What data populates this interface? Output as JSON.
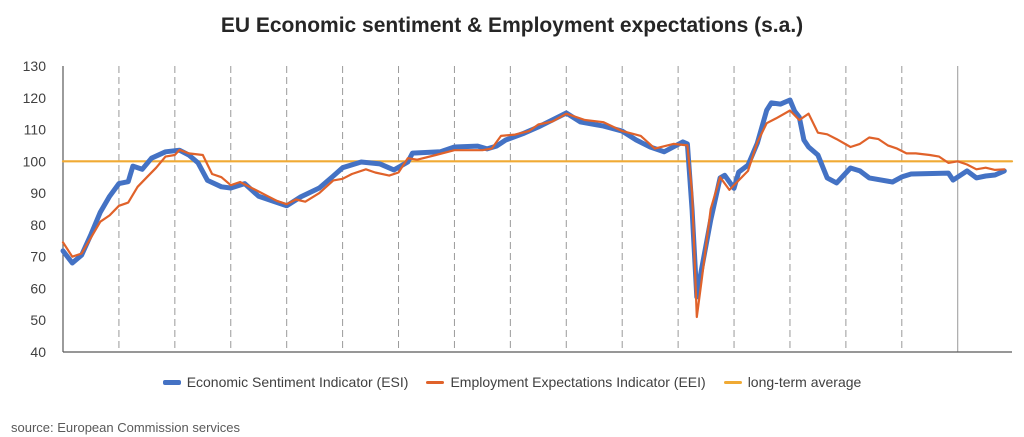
{
  "chart_data": {
    "type": "line",
    "title": "EU Economic sentiment & Employment expectations (s.a.)",
    "xlabel": "",
    "ylabel": "",
    "ylim": [
      40,
      130
    ],
    "yticks": [
      40,
      50,
      60,
      70,
      80,
      90,
      100,
      110,
      120,
      130
    ],
    "x_unit": "months since start of series (vertical gridlines every 12 months)",
    "x_range": [
      0,
      204
    ],
    "year_gridlines": [
      12,
      24,
      36,
      48,
      60,
      72,
      84,
      96,
      108,
      120,
      132,
      144,
      156,
      168,
      180,
      192
    ],
    "grid": "vertical dashed yearly lines; last line solid",
    "legend_position": "bottom",
    "series": [
      {
        "name": "Economic Sentiment Indicator (ESI)",
        "color": "#4472C4",
        "points": [
          [
            0,
            71.8
          ],
          [
            2,
            68
          ],
          [
            4,
            70.5
          ],
          [
            6,
            77
          ],
          [
            8,
            84
          ],
          [
            10,
            89
          ],
          [
            12,
            93
          ],
          [
            14,
            93.6
          ],
          [
            15,
            98.5
          ],
          [
            17,
            97.5
          ],
          [
            19,
            101
          ],
          [
            22,
            103
          ],
          [
            25,
            103.5
          ],
          [
            27,
            102
          ],
          [
            29,
            99.5
          ],
          [
            31,
            94
          ],
          [
            34,
            92
          ],
          [
            36,
            91.6
          ],
          [
            39,
            93
          ],
          [
            42,
            89
          ],
          [
            46,
            87
          ],
          [
            48,
            86
          ],
          [
            51,
            88.8
          ],
          [
            55,
            91.6
          ],
          [
            58,
            95.4
          ],
          [
            60,
            98
          ],
          [
            64,
            99.8
          ],
          [
            68,
            99.2
          ],
          [
            71,
            97.3
          ],
          [
            74,
            99.8
          ],
          [
            75,
            102.6
          ],
          [
            81,
            103
          ],
          [
            84,
            104.5
          ],
          [
            89,
            104.8
          ],
          [
            91,
            103.9
          ],
          [
            93,
            104.8
          ],
          [
            95,
            106.7
          ],
          [
            99,
            108.9
          ],
          [
            102,
            110.8
          ],
          [
            108,
            115.2
          ],
          [
            111,
            112.4
          ],
          [
            116,
            111.1
          ],
          [
            120,
            109.5
          ],
          [
            123,
            106.7
          ],
          [
            126,
            104.5
          ],
          [
            129,
            103
          ],
          [
            133,
            106.1
          ],
          [
            134,
            105.5
          ],
          [
            135,
            84.7
          ],
          [
            136,
            57.3
          ],
          [
            137,
            65.8
          ],
          [
            139,
            81.5
          ],
          [
            141,
            94.8
          ],
          [
            142,
            95.6
          ],
          [
            144,
            91.5
          ],
          [
            145,
            96.6
          ],
          [
            147,
            98.8
          ],
          [
            149,
            105.7
          ],
          [
            151,
            116.1
          ],
          [
            152,
            118.4
          ],
          [
            154,
            118
          ],
          [
            156,
            119.3
          ],
          [
            157,
            115.8
          ],
          [
            158,
            113.9
          ],
          [
            159,
            106.7
          ],
          [
            160,
            104.5
          ],
          [
            162,
            102
          ],
          [
            164,
            94.8
          ],
          [
            166,
            93.2
          ],
          [
            169,
            97.9
          ],
          [
            171,
            97
          ],
          [
            173,
            94.8
          ],
          [
            178,
            93.5
          ],
          [
            180,
            95.1
          ],
          [
            182,
            96
          ],
          [
            190,
            96.3
          ],
          [
            191,
            94.1
          ],
          [
            194,
            97
          ],
          [
            196,
            94.8
          ],
          [
            198,
            95.4
          ],
          [
            200,
            95.7
          ],
          [
            202,
            97
          ]
        ]
      },
      {
        "name": "Employment Expectations Indicator (EEI)",
        "color": "#E0622A",
        "points": [
          [
            0,
            74.5
          ],
          [
            2,
            70
          ],
          [
            4,
            71
          ],
          [
            6,
            76
          ],
          [
            8,
            81
          ],
          [
            10,
            83
          ],
          [
            12,
            86
          ],
          [
            14,
            87
          ],
          [
            16,
            92
          ],
          [
            18,
            95
          ],
          [
            20,
            98
          ],
          [
            22,
            101.5
          ],
          [
            24,
            102
          ],
          [
            25,
            103.6
          ],
          [
            27,
            102.5
          ],
          [
            30,
            102
          ],
          [
            32,
            96
          ],
          [
            34,
            95
          ],
          [
            36,
            92.5
          ],
          [
            38,
            93.5
          ],
          [
            40,
            92
          ],
          [
            42,
            90.5
          ],
          [
            44,
            89
          ],
          [
            46,
            87.5
          ],
          [
            48,
            86.5
          ],
          [
            50,
            88
          ],
          [
            52,
            87.3
          ],
          [
            55,
            90
          ],
          [
            58,
            94
          ],
          [
            60,
            94.5
          ],
          [
            62,
            96
          ],
          [
            65,
            97.5
          ],
          [
            67,
            96.5
          ],
          [
            70,
            95.5
          ],
          [
            72,
            96.5
          ],
          [
            74,
            101
          ],
          [
            76,
            100.5
          ],
          [
            80,
            102
          ],
          [
            84,
            103.5
          ],
          [
            87,
            103.5
          ],
          [
            90,
            103.5
          ],
          [
            92,
            104
          ],
          [
            94,
            108
          ],
          [
            97,
            108.4
          ],
          [
            100,
            109.5
          ],
          [
            102,
            111.6
          ],
          [
            105,
            112.5
          ],
          [
            108,
            115
          ],
          [
            112,
            113
          ],
          [
            116,
            112.3
          ],
          [
            120,
            109.5
          ],
          [
            124,
            108
          ],
          [
            127,
            104
          ],
          [
            131,
            105.5
          ],
          [
            134,
            105
          ],
          [
            135,
            90
          ],
          [
            136,
            51
          ],
          [
            137,
            62
          ],
          [
            139,
            85
          ],
          [
            141,
            95
          ],
          [
            143,
            91
          ],
          [
            145,
            94
          ],
          [
            147,
            97
          ],
          [
            149,
            106
          ],
          [
            151,
            112
          ],
          [
            153,
            113.5
          ],
          [
            156,
            116
          ],
          [
            158,
            113
          ],
          [
            160,
            115
          ],
          [
            162,
            109
          ],
          [
            164,
            108.5
          ],
          [
            166,
            107
          ],
          [
            169,
            104.5
          ],
          [
            171,
            105.5
          ],
          [
            173,
            107.5
          ],
          [
            175,
            107
          ],
          [
            177,
            105
          ],
          [
            179,
            104
          ],
          [
            181,
            102.5
          ],
          [
            183,
            102.5
          ],
          [
            186,
            102
          ],
          [
            188,
            101.5
          ],
          [
            190,
            99.5
          ],
          [
            192,
            100
          ],
          [
            194,
            99
          ],
          [
            196,
            97.5
          ],
          [
            198,
            98
          ],
          [
            200,
            97.3
          ],
          [
            202,
            97.5
          ]
        ]
      },
      {
        "name": "long-term average",
        "color": "#F0AA34",
        "points": [
          [
            0,
            100
          ],
          [
            204,
            100
          ]
        ]
      }
    ]
  },
  "legend": {
    "items": [
      {
        "label": "Economic Sentiment Indicator (ESI)",
        "color": "#4472C4"
      },
      {
        "label": "Employment Expectations Indicator (EEI)",
        "color": "#E0622A"
      },
      {
        "label": "long-term average",
        "color": "#F0AA34"
      }
    ]
  },
  "source": "source: European Commission services"
}
